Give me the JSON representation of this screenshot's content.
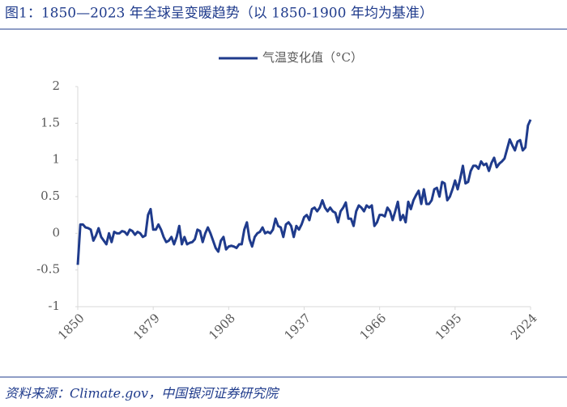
{
  "chart_data": {
    "type": "line",
    "title": "图1：1850—2023 年全球呈变暖趋势（以 1850-1900 年均为基准）",
    "source": "资料来源：Climate.gov，中国银河证券研究院",
    "x": [
      1850,
      1851,
      1852,
      1853,
      1854,
      1855,
      1856,
      1857,
      1858,
      1859,
      1860,
      1861,
      1862,
      1863,
      1864,
      1865,
      1866,
      1867,
      1868,
      1869,
      1870,
      1871,
      1872,
      1873,
      1874,
      1875,
      1876,
      1877,
      1878,
      1879,
      1880,
      1881,
      1882,
      1883,
      1884,
      1885,
      1886,
      1887,
      1888,
      1889,
      1890,
      1891,
      1892,
      1893,
      1894,
      1895,
      1896,
      1897,
      1898,
      1899,
      1900,
      1901,
      1902,
      1903,
      1904,
      1905,
      1906,
      1907,
      1908,
      1909,
      1910,
      1911,
      1912,
      1913,
      1914,
      1915,
      1916,
      1917,
      1918,
      1919,
      1920,
      1921,
      1922,
      1923,
      1924,
      1925,
      1926,
      1927,
      1928,
      1929,
      1930,
      1931,
      1932,
      1933,
      1934,
      1935,
      1936,
      1937,
      1938,
      1939,
      1940,
      1941,
      1942,
      1943,
      1944,
      1945,
      1946,
      1947,
      1948,
      1949,
      1950,
      1951,
      1952,
      1953,
      1954,
      1955,
      1956,
      1957,
      1958,
      1959,
      1960,
      1961,
      1962,
      1963,
      1964,
      1965,
      1966,
      1967,
      1968,
      1969,
      1970,
      1971,
      1972,
      1973,
      1974,
      1975,
      1976,
      1977,
      1978,
      1979,
      1980,
      1981,
      1982,
      1983,
      1984,
      1985,
      1986,
      1987,
      1988,
      1989,
      1990,
      1991,
      1992,
      1993,
      1994,
      1995,
      1996,
      1997,
      1998,
      1999,
      2000,
      2001,
      2002,
      2003,
      2004,
      2005,
      2006,
      2007,
      2008,
      2009,
      2010,
      2011,
      2012,
      2013,
      2014,
      2015,
      2016,
      2017,
      2018,
      2019,
      2020,
      2021,
      2022,
      2023,
      2024
    ],
    "series": [
      {
        "name": "气温变化值（°C）",
        "color": "#1f3b8c",
        "values": [
          -0.43,
          0.12,
          0.12,
          0.08,
          0.07,
          0.05,
          -0.1,
          -0.03,
          0.07,
          -0.05,
          -0.1,
          -0.15,
          0.0,
          -0.12,
          0.02,
          0.0,
          0.0,
          0.03,
          0.02,
          -0.02,
          0.05,
          0.03,
          -0.02,
          0.02,
          0.0,
          -0.05,
          -0.03,
          0.25,
          0.33,
          0.05,
          0.05,
          0.12,
          0.05,
          -0.05,
          -0.12,
          -0.1,
          -0.05,
          -0.15,
          -0.05,
          0.1,
          -0.15,
          -0.05,
          -0.15,
          -0.13,
          -0.12,
          -0.08,
          0.05,
          0.03,
          -0.12,
          0.0,
          0.08,
          0.0,
          -0.1,
          -0.2,
          -0.25,
          -0.1,
          -0.05,
          -0.22,
          -0.18,
          -0.17,
          -0.18,
          -0.2,
          -0.15,
          -0.15,
          0.05,
          0.15,
          -0.08,
          -0.18,
          -0.05,
          0.0,
          0.02,
          0.08,
          0.0,
          0.02,
          0.0,
          0.05,
          0.2,
          0.1,
          0.08,
          -0.05,
          0.12,
          0.15,
          0.1,
          -0.05,
          0.1,
          0.05,
          0.12,
          0.22,
          0.25,
          0.18,
          0.33,
          0.35,
          0.3,
          0.35,
          0.45,
          0.35,
          0.3,
          0.35,
          0.3,
          0.28,
          0.15,
          0.3,
          0.35,
          0.42,
          0.2,
          0.2,
          0.1,
          0.3,
          0.38,
          0.35,
          0.3,
          0.38,
          0.35,
          0.38,
          0.1,
          0.15,
          0.25,
          0.25,
          0.23,
          0.35,
          0.3,
          0.18,
          0.3,
          0.43,
          0.18,
          0.25,
          0.15,
          0.43,
          0.33,
          0.45,
          0.52,
          0.58,
          0.4,
          0.6,
          0.4,
          0.4,
          0.45,
          0.6,
          0.62,
          0.5,
          0.7,
          0.68,
          0.45,
          0.5,
          0.6,
          0.72,
          0.6,
          0.75,
          0.92,
          0.68,
          0.7,
          0.85,
          0.92,
          0.92,
          0.88,
          0.98,
          0.93,
          0.95,
          0.85,
          0.96,
          1.03,
          0.9,
          0.95,
          0.98,
          1.02,
          1.15,
          1.28,
          1.2,
          1.13,
          1.25,
          1.27,
          1.13,
          1.17,
          1.47,
          1.55
        ]
      }
    ],
    "xlim": [
      1850,
      2024
    ],
    "xticks": [
      1850,
      1879,
      1908,
      1937,
      1966,
      1995,
      2024
    ],
    "ylim": [
      -1,
      2
    ],
    "yticks": [
      2,
      1.5,
      1,
      0.5,
      0,
      -0.5,
      -1
    ],
    "legend": "top"
  }
}
